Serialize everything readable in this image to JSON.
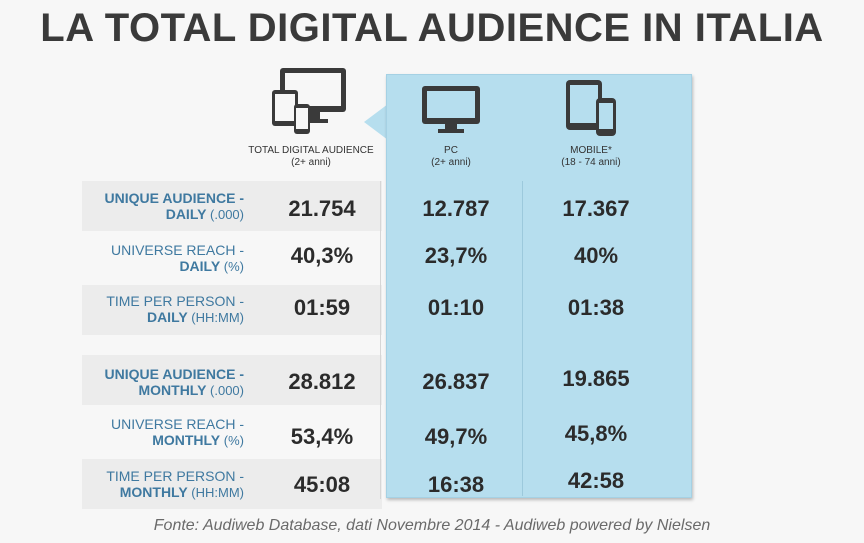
{
  "title": "LA TOTAL DIGITAL AUDIENCE IN ITALIA",
  "columns": [
    {
      "label": "TOTAL DIGITAL AUDIENCE",
      "sub": "(2+ anni)",
      "icon": "multi-device-icon"
    },
    {
      "label": "PC",
      "sub": "(2+ anni)",
      "icon": "desktop-monitor-icon"
    },
    {
      "label": "MOBILE*",
      "sub": "(18 - 74 anni)",
      "icon": "tablet-phone-icon"
    }
  ],
  "rows": [
    {
      "line1": "UNIQUE AUDIENCE -",
      "line2_bold": "DAILY",
      "line2_unit": " (.000)",
      "line1_bold": true
    },
    {
      "line1": "UNIVERSE REACH -",
      "line2_bold": "DAILY",
      "line2_unit": " (%)",
      "line1_bold": false
    },
    {
      "line1": "TIME PER PERSON -",
      "line2_bold": "DAILY",
      "line2_unit": " (HH:MM)",
      "line1_bold": false
    },
    {
      "line1": "UNIQUE AUDIENCE -",
      "line2_bold": "MONTHLY",
      "line2_unit": " (.000)",
      "line1_bold": true
    },
    {
      "line1": "UNIVERSE REACH -",
      "line2_bold": "MONTHLY",
      "line2_unit": " (%)",
      "line1_bold": false
    },
    {
      "line1": "TIME PER PERSON -",
      "line2_bold": "MONTHLY",
      "line2_unit": " (HH:MM)",
      "line1_bold": false
    }
  ],
  "chart_data": {
    "type": "table",
    "title": "LA TOTAL DIGITAL AUDIENCE IN ITALIA",
    "columns": [
      "TOTAL DIGITAL AUDIENCE (2+ anni)",
      "PC (2+ anni)",
      "MOBILE* (18 - 74 anni)"
    ],
    "rows": [
      {
        "metric": "UNIQUE AUDIENCE - DAILY (.000)",
        "values": [
          "21.754",
          "12.787",
          "17.367"
        ]
      },
      {
        "metric": "UNIVERSE REACH - DAILY (%)",
        "values": [
          "40,3%",
          "23,7%",
          "40%"
        ]
      },
      {
        "metric": "TIME PER PERSON - DAILY (HH:MM)",
        "values": [
          "01:59",
          "01:10",
          "01:38"
        ]
      },
      {
        "metric": "UNIQUE AUDIENCE - MONTHLY (.000)",
        "values": [
          "28.812",
          "26.837",
          "19.865"
        ]
      },
      {
        "metric": "UNIVERSE REACH - MONTHLY (%)",
        "values": [
          "53,4%",
          "49,7%",
          "45,8%"
        ]
      },
      {
        "metric": "TIME PER PERSON - MONTHLY (HH:MM)",
        "values": [
          "45:08",
          "16:38",
          "42:58"
        ]
      }
    ]
  },
  "footer": "Fonte: Audiweb Database, dati Novembre 2014 - Audiweb powered by Nielsen",
  "colors": {
    "panel": "#b6deee",
    "label_blue": "#3f79a0",
    "title": "#3a3a3a"
  }
}
